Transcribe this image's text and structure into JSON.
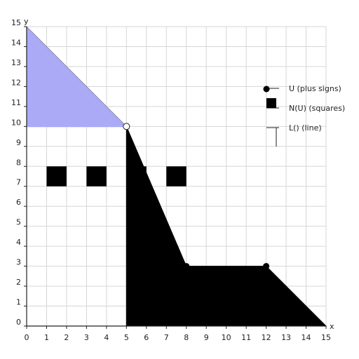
{
  "chart_data": {
    "type": "area",
    "xlabel": "x",
    "ylabel": "y",
    "xlim": [
      0,
      15
    ],
    "ylim": [
      0,
      15
    ],
    "xticks": [
      0,
      1,
      2,
      3,
      4,
      5,
      6,
      7,
      8,
      9,
      10,
      11,
      12,
      13,
      14,
      15
    ],
    "yticks": [
      0,
      1,
      2,
      3,
      4,
      5,
      6,
      7,
      8,
      9,
      10,
      11,
      12,
      13,
      14,
      15
    ],
    "grid": true,
    "regions": [
      {
        "id": "upper-triangle",
        "color": "#aaaaf7",
        "stroke": "#8d8db0",
        "points": [
          [
            0,
            15
          ],
          [
            5,
            10
          ],
          [
            0,
            10
          ]
        ]
      },
      {
        "id": "lower-polygon",
        "color": "#000000",
        "stroke": "#000000",
        "points": [
          [
            5,
            10
          ],
          [
            8,
            3
          ],
          [
            12,
            3
          ],
          [
            15,
            0
          ],
          [
            5,
            0
          ]
        ]
      }
    ],
    "lines": [
      {
        "id": "horizontal-10",
        "color": "#aaaaf7",
        "points": [
          [
            0,
            10
          ],
          [
            5,
            10
          ]
        ]
      }
    ],
    "squares": [
      {
        "x": 1.5,
        "y": 7.5
      },
      {
        "x": 3.5,
        "y": 7.5
      },
      {
        "x": 5.5,
        "y": 7.5
      },
      {
        "x": 7.5,
        "y": 7.5
      }
    ],
    "points": [
      {
        "x": 8,
        "y": 3,
        "style": "filled"
      },
      {
        "x": 12,
        "y": 3,
        "style": "filled"
      },
      {
        "x": 5,
        "y": 10,
        "style": "open"
      }
    ],
    "legend": {
      "placement": "right",
      "entries": [
        {
          "label": "U (plus signs)",
          "marker": "line"
        },
        {
          "label": "N(U) (squares)",
          "marker": "circle"
        },
        {
          "label": "L() (line)",
          "marker": "square"
        },
        {
          "label": "",
          "marker": "hook"
        }
      ]
    }
  }
}
